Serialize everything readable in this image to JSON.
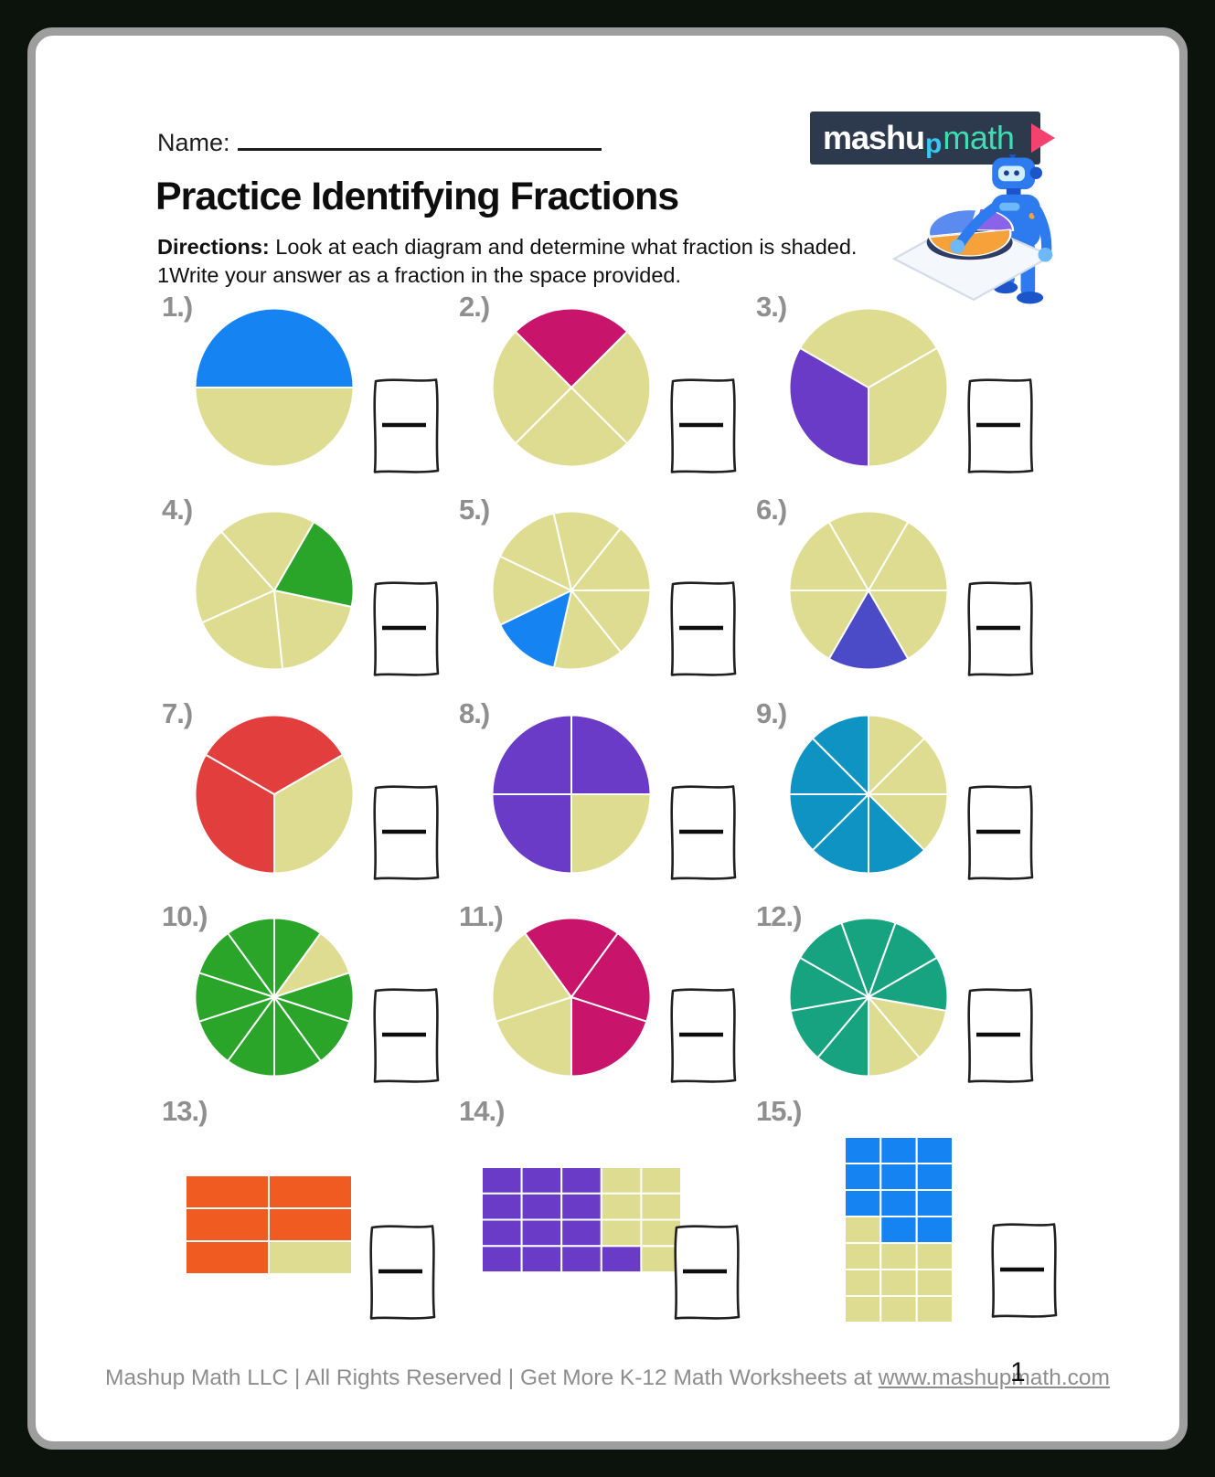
{
  "header": {
    "name_label": "Name:",
    "title": "Practice Identifying Fractions",
    "directions_label": "Directions:",
    "directions_rest": " Look at each diagram and determine what fraction is shaded.",
    "directions_line2": "1Write your answer as a fraction in the space provided."
  },
  "logo": {
    "text_mashu": "mashu",
    "text_p": "p",
    "text_math": "math",
    "bg_color": "#2d3a4e",
    "mashu_color": "#ffffff",
    "p_color": "#38c6f4",
    "math_color": "#3eddb2",
    "triangle_color": "#f4426e",
    "mascot": "robot-holding-pie-chart"
  },
  "footer": {
    "text": "Mashup Math LLC | All Rights Reserved | Get More K-12 Math Worksheets at ",
    "link": "www.mashupmath.com",
    "page_number": "1"
  },
  "colors": {
    "unshaded": "#dedc90",
    "divider": "#ffffff",
    "label_gray": "#8f8f8f",
    "footer_gray": "#8d8d8d",
    "page_border": "#9e9e9e",
    "background": "#0c120c"
  },
  "chart_data": [
    {
      "id": 1,
      "label": "1.)",
      "type": "pie",
      "slices": 2,
      "shaded_count": 1,
      "fraction_shaded": "1/2",
      "shaded_color": "#1583f2",
      "start_angle": 90,
      "shaded_indices": [
        1
      ]
    },
    {
      "id": 2,
      "label": "2.)",
      "type": "pie",
      "slices": 4,
      "shaded_count": 1,
      "fraction_shaded": "1/4",
      "shaded_color": "#c8156b",
      "start_angle": -45,
      "shaded_indices": [
        0
      ]
    },
    {
      "id": 3,
      "label": "3.)",
      "type": "pie",
      "slices": 3,
      "shaded_count": 1,
      "fraction_shaded": "1/3",
      "shaded_color": "#6a3bc6",
      "start_angle": 60,
      "shaded_indices": [
        1
      ]
    },
    {
      "id": 4,
      "label": "4.)",
      "type": "pie",
      "slices": 5,
      "shaded_count": 1,
      "fraction_shaded": "1/5",
      "shaded_color": "#2aa52a",
      "start_angle": 30,
      "shaded_indices": [
        0
      ]
    },
    {
      "id": 5,
      "label": "5.)",
      "type": "pie",
      "slices": 7,
      "shaded_count": 1,
      "fraction_shaded": "1/7",
      "shaded_color": "#1583f2",
      "start_angle": -13,
      "shaded_indices": [
        4
      ]
    },
    {
      "id": 6,
      "label": "6.)",
      "type": "pie",
      "slices": 6,
      "shaded_count": 1,
      "fraction_shaded": "1/6",
      "shaded_color": "#4b4bc8",
      "start_angle": 30,
      "shaded_indices": [
        2
      ]
    },
    {
      "id": 7,
      "label": "7.)",
      "type": "pie",
      "slices": 3,
      "shaded_count": 2,
      "fraction_shaded": "2/3",
      "shaded_color": "#e33e3e",
      "start_angle": 60,
      "shaded_indices": [
        1,
        2
      ]
    },
    {
      "id": 8,
      "label": "8.)",
      "type": "pie",
      "slices": 4,
      "shaded_count": 3,
      "fraction_shaded": "3/4",
      "shaded_color": "#6a3bc6",
      "start_angle": 0,
      "shaded_indices": [
        0,
        2,
        3
      ]
    },
    {
      "id": 9,
      "label": "9.)",
      "type": "pie",
      "slices": 8,
      "shaded_count": 5,
      "fraction_shaded": "5/8",
      "shaded_color": "#0e93c2",
      "start_angle": 0,
      "shaded_indices": [
        3,
        4,
        5,
        6,
        7
      ]
    },
    {
      "id": 10,
      "label": "10.)",
      "type": "pie",
      "slices": 10,
      "shaded_count": 9,
      "fraction_shaded": "9/10",
      "shaded_color": "#2aa52a",
      "start_angle": 0,
      "shaded_indices": [
        0,
        2,
        3,
        4,
        5,
        6,
        7,
        8,
        9
      ]
    },
    {
      "id": 11,
      "label": "11.)",
      "type": "pie",
      "slices": 5,
      "shaded_count": 3,
      "fraction_shaded": "3/5",
      "shaded_color": "#c8156b",
      "start_angle": 180,
      "shaded_indices": [
        2,
        3,
        4
      ]
    },
    {
      "id": 12,
      "label": "12.)",
      "type": "pie",
      "slices": 9,
      "shaded_count": 7,
      "fraction_shaded": "7/9",
      "shaded_color": "#17a380",
      "start_angle": 180,
      "shaded_indices": [
        0,
        1,
        2,
        3,
        4,
        5,
        6
      ]
    },
    {
      "id": 13,
      "label": "13.)",
      "type": "grid",
      "cols": 2,
      "rows": 3,
      "total_cells": 6,
      "shaded_count": 5,
      "fraction_shaded": "5/6",
      "shaded_color": "#ef5b21",
      "cells": [
        [
          1,
          1
        ],
        [
          1,
          1
        ],
        [
          1,
          0
        ]
      ]
    },
    {
      "id": 14,
      "label": "14.)",
      "type": "grid",
      "cols": 5,
      "rows": 4,
      "total_cells": 20,
      "shaded_count": 13,
      "fraction_shaded": "13/20",
      "shaded_color": "#6a3bc6",
      "cells": [
        [
          1,
          1,
          1,
          0,
          0
        ],
        [
          1,
          1,
          1,
          0,
          0
        ],
        [
          1,
          1,
          1,
          0,
          0
        ],
        [
          1,
          1,
          1,
          1,
          0
        ]
      ]
    },
    {
      "id": 15,
      "label": "15.)",
      "type": "grid",
      "cols": 3,
      "rows": 7,
      "total_cells": 21,
      "shaded_count": 11,
      "fraction_shaded": "11/21",
      "shaded_color": "#1583f2",
      "cells": [
        [
          1,
          1,
          1
        ],
        [
          1,
          1,
          1
        ],
        [
          1,
          1,
          1
        ],
        [
          0,
          1,
          1
        ],
        [
          0,
          0,
          0
        ],
        [
          0,
          0,
          0
        ],
        [
          0,
          0,
          0
        ]
      ]
    }
  ]
}
